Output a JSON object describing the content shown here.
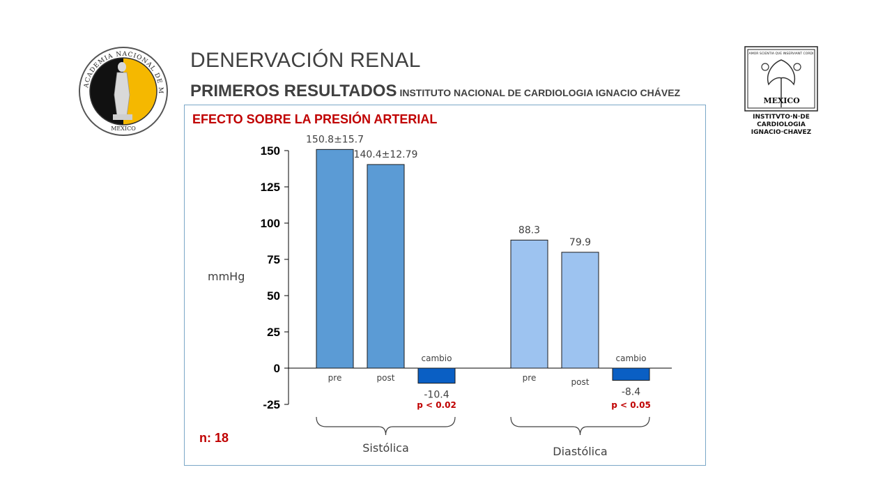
{
  "header": {
    "title": "DENERVACIÓN RENAL",
    "subtitle": "PRIMEROS RESULTADOS",
    "institution": "INSTITUTO NACIONAL DE CARDIOLOGIA IGNACIO CHÁVEZ"
  },
  "logos": {
    "left_text": "ACADEMIA NACIONAL DE MEDICINA · MEXICO",
    "right_text": "AMOR SCIENTIA QVE INSERVIANT CORDI · MEX ICO · INSTITVTO N DE CARDIOLOGIA IGNACIO CHAVEZ"
  },
  "colors": {
    "systolic": "#5b9bd5",
    "diastolic": "#9dc3f0",
    "change": "#0a5fc4",
    "accent_red": "#c00000",
    "text": "#404040",
    "panel_border": "#7aa7c7"
  },
  "chart_data": {
    "type": "bar",
    "title": "EFECTO SOBRE LA PRESIÓN ARTERIAL",
    "ylabel": "mmHg",
    "ylim": [
      -25,
      150
    ],
    "yticks": [
      "150",
      "125",
      "100",
      "75",
      "50",
      "25",
      "0",
      "-25"
    ],
    "groups": [
      {
        "name": "Sistólica",
        "bars": [
          {
            "category": "pre",
            "value": 150.8,
            "label": "150.8±15.7",
            "kind": "systolic"
          },
          {
            "category": "post",
            "value": 140.4,
            "label": "140.4±12.79",
            "kind": "systolic"
          },
          {
            "category": "cambio",
            "value": -10.4,
            "label": "-10.4",
            "kind": "change",
            "p": "p < 0.02"
          }
        ]
      },
      {
        "name": "Diastólica",
        "bars": [
          {
            "category": "pre",
            "value": 88.3,
            "label": "88.3",
            "kind": "diastolic"
          },
          {
            "category": "post",
            "value": 79.9,
            "label": "79.9",
            "kind": "diastolic"
          },
          {
            "category": "cambio",
            "value": -8.4,
            "label": "-8.4",
            "kind": "change",
            "p": "p < 0.05"
          }
        ]
      }
    ],
    "n_label": "n: 18"
  }
}
